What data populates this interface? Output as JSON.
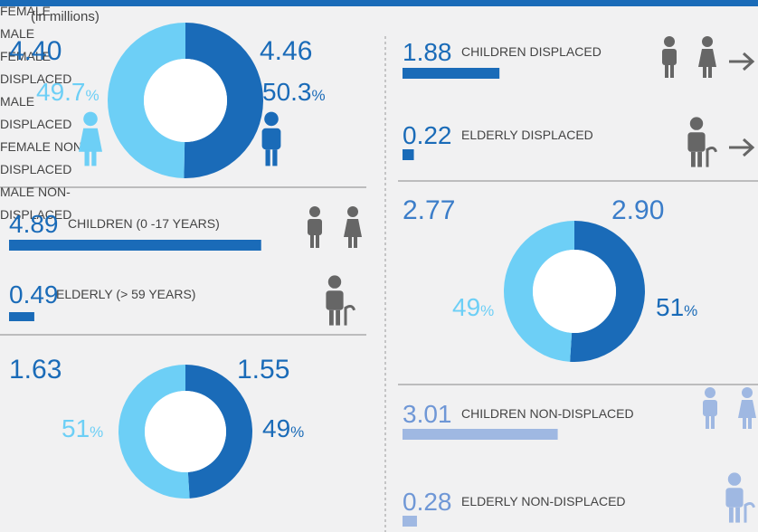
{
  "note": "(in millions)",
  "donuts": [
    {
      "unit": "%",
      "left": {
        "value": 4.4,
        "value_label": "4.40",
        "label": "FEMALE",
        "percent": 49.7,
        "color": "#6dcff6"
      },
      "right": {
        "value": 4.46,
        "label": "MALE",
        "percent": 50.3,
        "color": "#1a6bb8"
      }
    },
    {
      "unit": "%",
      "left": {
        "value": 1.63,
        "label": "FEMALE DISPLACED",
        "percent": 51,
        "color": "#6dcff6"
      },
      "right": {
        "value": 1.55,
        "label": "MALE DISPLACED",
        "percent": 49,
        "color": "#1a6bb8"
      }
    },
    {
      "unit": "%",
      "left": {
        "value": 2.77,
        "label": "FEMALE NON-DISPLACED",
        "percent": 49,
        "color": "#6dcff6"
      },
      "right": {
        "value": 2.9,
        "value_label": "2.90",
        "label": "MALE NON-DISPLACED",
        "percent": 51,
        "color": "#1a6bb8"
      }
    }
  ],
  "bars": [
    {
      "value": 4.89,
      "label": "CHILDREN (0 -17 YEARS)",
      "color": "#1a6bb8"
    },
    {
      "value": 0.49,
      "label": "ELDERLY (> 59 YEARS)",
      "color": "#1a6bb8"
    },
    {
      "value": 1.88,
      "label": "CHILDREN DISPLACED",
      "color": "#1a6bb8"
    },
    {
      "value": 0.22,
      "label": "ELDERLY DISPLACED",
      "color": "#1a6bb8"
    },
    {
      "value": 3.01,
      "label": "CHILDREN NON-DISPLACED",
      "color": "#9fb8e2"
    },
    {
      "value": 0.28,
      "label": "ELDERLY NON-DISPLACED",
      "color": "#9fb8e2"
    }
  ]
}
